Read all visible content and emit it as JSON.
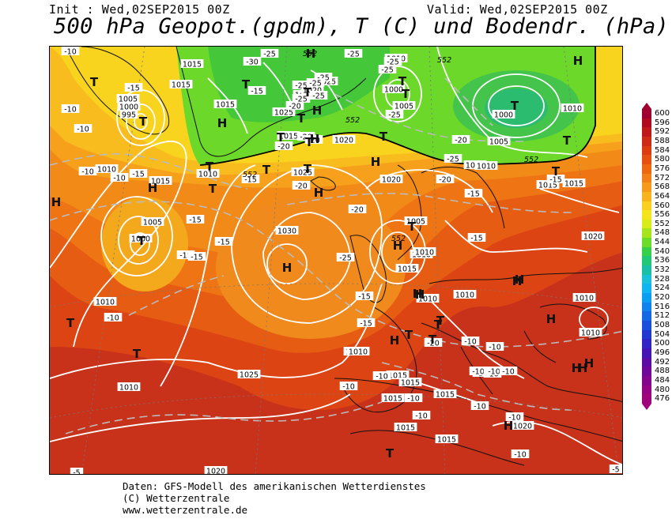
{
  "header": {
    "init_label": "Init : Wed,02SEP2015 00Z",
    "valid_label": "Valid: Wed,02SEP2015 00Z",
    "title": "500 hPa Geopot.(gpdm), T (C) und Bodendr. (hPa)"
  },
  "scale": {
    "values": [
      "600",
      "596",
      "592",
      "588",
      "584",
      "580",
      "576",
      "572",
      "568",
      "564",
      "560",
      "556",
      "552",
      "548",
      "544",
      "540",
      "536",
      "532",
      "528",
      "524",
      "520",
      "516",
      "512",
      "508",
      "504",
      "500",
      "496",
      "492",
      "488",
      "484",
      "480",
      "476"
    ],
    "colors": [
      "#a00030",
      "#b00a20",
      "#c01818",
      "#cf2a14",
      "#dd3c10",
      "#e65010",
      "#ee6812",
      "#f28018",
      "#f69a1c",
      "#f8b41e",
      "#fad020",
      "#f4e41c",
      "#d8ec1a",
      "#a6e41c",
      "#6cdc2a",
      "#36d048",
      "#20c878",
      "#18c0a8",
      "#18c0d8",
      "#10b4f0",
      "#0c9ef0",
      "#1084ec",
      "#1468e4",
      "#1850dc",
      "#2038d0",
      "#3024c4",
      "#4414b4",
      "#5c0ca4",
      "#70069a",
      "#84048e",
      "#940484",
      "#a0047a"
    ]
  },
  "map": {
    "pressure_labels": [
      {
        "text": "1015"
      },
      {
        "text": "1015"
      },
      {
        "text": "1015"
      },
      {
        "text": "1005"
      },
      {
        "text": "1000"
      },
      {
        "text": "995"
      },
      {
        "text": "1010"
      },
      {
        "text": "1015"
      },
      {
        "text": "1010"
      },
      {
        "text": "1005"
      },
      {
        "text": "1000"
      },
      {
        "text": "1010"
      },
      {
        "text": "1010"
      },
      {
        "text": "1015"
      },
      {
        "text": "1025"
      },
      {
        "text": "1020"
      },
      {
        "text": "1020"
      },
      {
        "text": "1025"
      },
      {
        "text": "1020"
      },
      {
        "text": "1025"
      },
      {
        "text": "1030"
      },
      {
        "text": "1020"
      },
      {
        "text": "1010"
      },
      {
        "text": "1005"
      },
      {
        "text": "1015"
      },
      {
        "text": "1010"
      },
      {
        "text": "1010"
      },
      {
        "text": "1010"
      },
      {
        "text": "1000"
      },
      {
        "text": "1005"
      },
      {
        "text": "1000"
      },
      {
        "text": "1005"
      },
      {
        "text": "1010"
      },
      {
        "text": "1015"
      },
      {
        "text": "1020"
      },
      {
        "text": "1010"
      },
      {
        "text": "1010"
      },
      {
        "text": "1020"
      },
      {
        "text": "1025"
      },
      {
        "text": "1015"
      },
      {
        "text": "1015"
      },
      {
        "text": "1015"
      },
      {
        "text": "1010"
      },
      {
        "text": "1015"
      },
      {
        "text": "1015"
      },
      {
        "text": "1020"
      },
      {
        "text": "1010"
      },
      {
        "text": "1010"
      },
      {
        "text": "1015"
      },
      {
        "text": "1010"
      },
      {
        "text": "1015"
      },
      {
        "text": "1020"
      }
    ],
    "temp_labels": [
      {
        "text": "-10"
      },
      {
        "text": "-30"
      },
      {
        "text": "-25"
      },
      {
        "text": "-25"
      },
      {
        "text": "-25"
      },
      {
        "text": "-25"
      },
      {
        "text": "-20"
      },
      {
        "text": "-25"
      },
      {
        "text": "-25"
      },
      {
        "text": "-25"
      },
      {
        "text": "-20"
      },
      {
        "text": "-25"
      },
      {
        "text": "-15"
      },
      {
        "text": "-10"
      },
      {
        "text": "-25"
      },
      {
        "text": "-15"
      },
      {
        "text": "-10"
      },
      {
        "text": "-10"
      },
      {
        "text": "-20"
      },
      {
        "text": "-20"
      },
      {
        "text": "-20"
      },
      {
        "text": "-25"
      },
      {
        "text": "-20"
      },
      {
        "text": "-25"
      },
      {
        "text": "-15"
      },
      {
        "text": "-20"
      },
      {
        "text": "-15"
      },
      {
        "text": "-15"
      },
      {
        "text": "-15"
      },
      {
        "text": "-15"
      },
      {
        "text": "-10"
      },
      {
        "text": "-15"
      },
      {
        "text": "-15"
      },
      {
        "text": "-15"
      },
      {
        "text": "-10"
      },
      {
        "text": "-20"
      },
      {
        "text": "-25"
      },
      {
        "text": "-15"
      },
      {
        "text": "-15"
      },
      {
        "text": "-20"
      },
      {
        "text": "-10"
      },
      {
        "text": "-10"
      },
      {
        "text": "-10"
      },
      {
        "text": "-10"
      },
      {
        "text": "-10"
      },
      {
        "text": "-10"
      },
      {
        "text": "-10"
      },
      {
        "text": "-10"
      },
      {
        "text": "-10"
      },
      {
        "text": "-10"
      },
      {
        "text": "-10"
      },
      {
        "text": "-10"
      },
      {
        "text": "-10"
      },
      {
        "text": "-15"
      },
      {
        "text": "-5"
      },
      {
        "text": "-5"
      },
      {
        "text": "-10"
      }
    ],
    "geopot_labels": [
      {
        "text": "552"
      },
      {
        "text": "552"
      },
      {
        "text": "552"
      },
      {
        "text": "552"
      },
      {
        "text": "552"
      },
      {
        "text": "552"
      }
    ],
    "centers": [
      {
        "text": "T"
      },
      {
        "text": "T"
      },
      {
        "text": "T"
      },
      {
        "text": "T"
      },
      {
        "text": "T"
      },
      {
        "text": "T"
      },
      {
        "text": "T"
      },
      {
        "text": "T"
      },
      {
        "text": "T"
      },
      {
        "text": "T"
      },
      {
        "text": "T"
      },
      {
        "text": "T"
      },
      {
        "text": "T"
      },
      {
        "text": "T"
      },
      {
        "text": "T"
      },
      {
        "text": "T"
      },
      {
        "text": "T"
      },
      {
        "text": "T"
      },
      {
        "text": "T"
      },
      {
        "text": "T"
      },
      {
        "text": "T"
      },
      {
        "text": "T"
      },
      {
        "text": "T"
      },
      {
        "text": "T"
      },
      {
        "text": "T"
      },
      {
        "text": "T"
      },
      {
        "text": "H"
      },
      {
        "text": "H"
      },
      {
        "text": "H"
      },
      {
        "text": "H"
      },
      {
        "text": "H"
      },
      {
        "text": "H"
      },
      {
        "text": "H"
      },
      {
        "text": "H"
      },
      {
        "text": "H"
      },
      {
        "text": "H"
      },
      {
        "text": "H"
      },
      {
        "text": "H"
      },
      {
        "text": "H"
      },
      {
        "text": "H"
      },
      {
        "text": "H"
      },
      {
        "text": "H"
      },
      {
        "text": "H"
      },
      {
        "text": "H"
      },
      {
        "text": "H"
      },
      {
        "text": "H"
      },
      {
        "text": "H"
      }
    ]
  },
  "credits": {
    "line1": "Daten: GFS-Modell des amerikanischen Wetterdienstes",
    "line2": "(C) Wetterzentrale",
    "line3": "www.wetterzentrale.de"
  }
}
